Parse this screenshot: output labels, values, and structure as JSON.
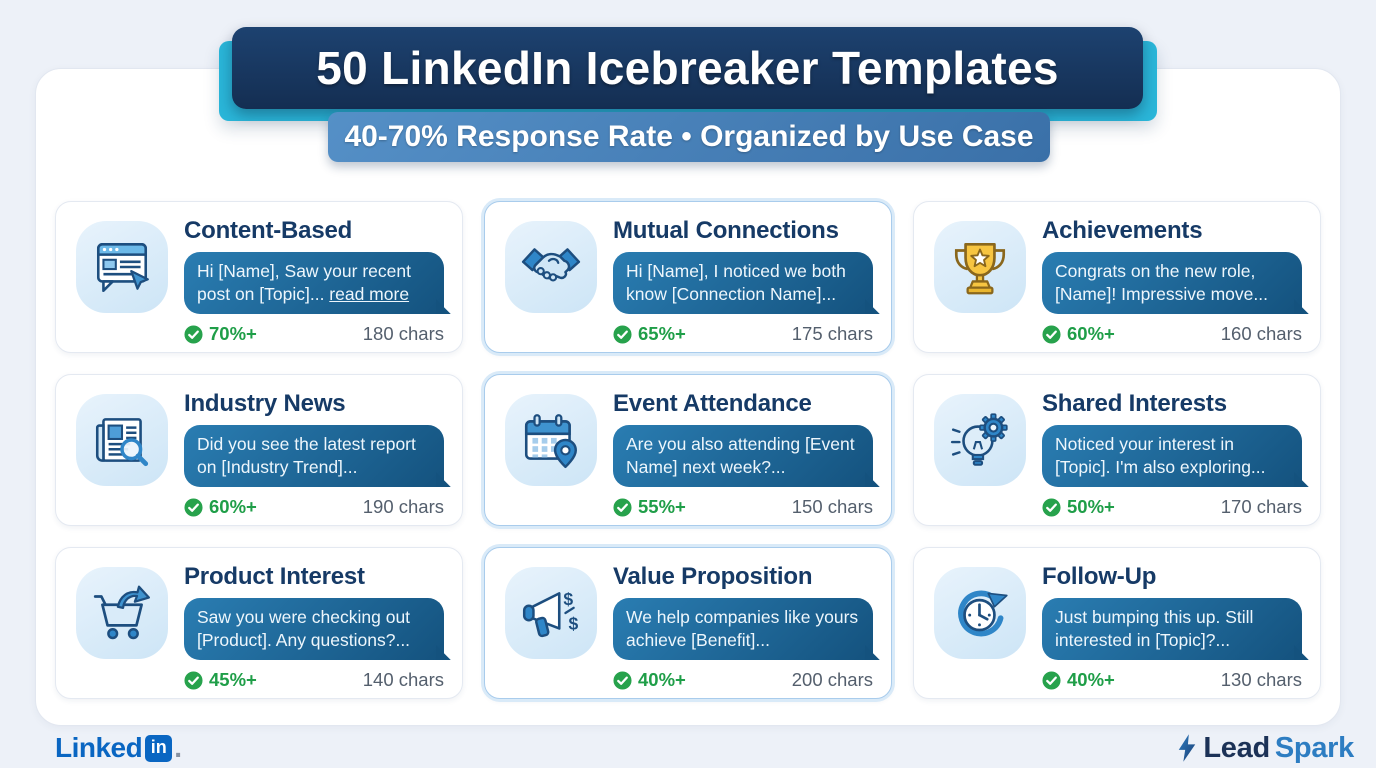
{
  "header": {
    "title": "50 LinkedIn Icebreaker Templates",
    "subtitle": "40-70% Response Rate • Organized by Use Case"
  },
  "cards": [
    {
      "icon": "browser-cursor-icon",
      "title": "Content-Based",
      "message": "Hi [Name], Saw your recent post on [Topic]... ",
      "message_link": "read more",
      "response_rate": "70%+",
      "char_count": "180 chars",
      "highlighted": false
    },
    {
      "icon": "handshake-icon",
      "title": "Mutual Connections",
      "message": "Hi [Name], I noticed we both know [Connection Name]...",
      "response_rate": "65%+",
      "char_count": "175 chars",
      "highlighted": true
    },
    {
      "icon": "trophy-icon",
      "title": "Achievements",
      "message": "Congrats on the new role, [Name]! Impressive move...",
      "response_rate": "60%+",
      "char_count": "160 chars",
      "highlighted": false
    },
    {
      "icon": "newspaper-search-icon",
      "title": "Industry News",
      "message": "Did you see the latest report on [Industry Trend]...",
      "response_rate": "60%+",
      "char_count": "190 chars",
      "highlighted": false
    },
    {
      "icon": "calendar-pin-icon",
      "title": "Event Attendance",
      "message": "Are you also attending [Event Name] next week?...",
      "response_rate": "55%+",
      "char_count": "150 chars",
      "highlighted": true
    },
    {
      "icon": "lightbulb-gear-icon",
      "title": "Shared Interests",
      "message": "Noticed your interest in [Topic]. I'm also exploring...",
      "response_rate": "50%+",
      "char_count": "170 chars",
      "highlighted": false
    },
    {
      "icon": "cart-arrow-icon",
      "title": "Product Interest",
      "message": "Saw you were checking out [Product]. Any questions?...",
      "response_rate": "45%+",
      "char_count": "140 chars",
      "highlighted": false
    },
    {
      "icon": "megaphone-dollar-icon",
      "title": "Value Proposition",
      "message": "We help companies like yours achieve [Benefit]...",
      "response_rate": "40%+",
      "char_count": "200 chars",
      "highlighted": true
    },
    {
      "icon": "clock-refresh-icon",
      "title": "Follow-Up",
      "message": "Just bumping this up. Still interested in [Topic]?...",
      "response_rate": "40%+",
      "char_count": "130 chars",
      "highlighted": false
    }
  ],
  "footer": {
    "linkedin_wordmark": "Linked",
    "linkedin_badge": "in",
    "linkedin_dot": ".",
    "brand_lead": "Lead",
    "brand_spark": "Spark"
  },
  "colors": {
    "background": "#edf1f8",
    "header_navy": "#16345c",
    "header_cyan": "#2ab6d9",
    "subtitle_blue": "#4381ba",
    "bubble_blue_start": "#2a7db2",
    "bubble_blue_end": "#14527e",
    "success_green": "#27a24c",
    "linkedin_blue": "#0a66c2",
    "brand_navy": "#1c3257",
    "brand_blue": "#2d7dc2"
  }
}
